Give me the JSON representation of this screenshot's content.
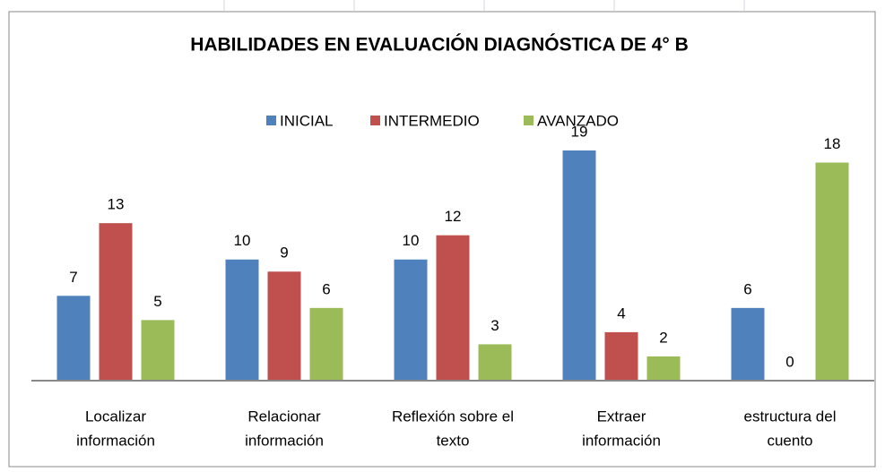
{
  "chart_data": {
    "type": "bar",
    "title": "HABILIDADES EN EVALUACIÓN DIAGNÓSTICA DE 4°  B",
    "categories": [
      [
        "Localizar",
        "información"
      ],
      [
        "Relacionar",
        "información"
      ],
      [
        "Reflexión sobre el",
        "texto"
      ],
      [
        "Extraer",
        "información"
      ],
      [
        "estructura del",
        "cuento"
      ]
    ],
    "series": [
      {
        "name": "INICIAL",
        "color": "#4f81bd",
        "values": [
          7,
          10,
          10,
          19,
          6
        ]
      },
      {
        "name": "INTERMEDIO",
        "color": "#c0504d",
        "values": [
          13,
          9,
          12,
          4,
          0
        ]
      },
      {
        "name": "AVANZADO",
        "color": "#9bbb59",
        "values": [
          5,
          6,
          3,
          2,
          18
        ]
      }
    ],
    "legend": "top"
  }
}
